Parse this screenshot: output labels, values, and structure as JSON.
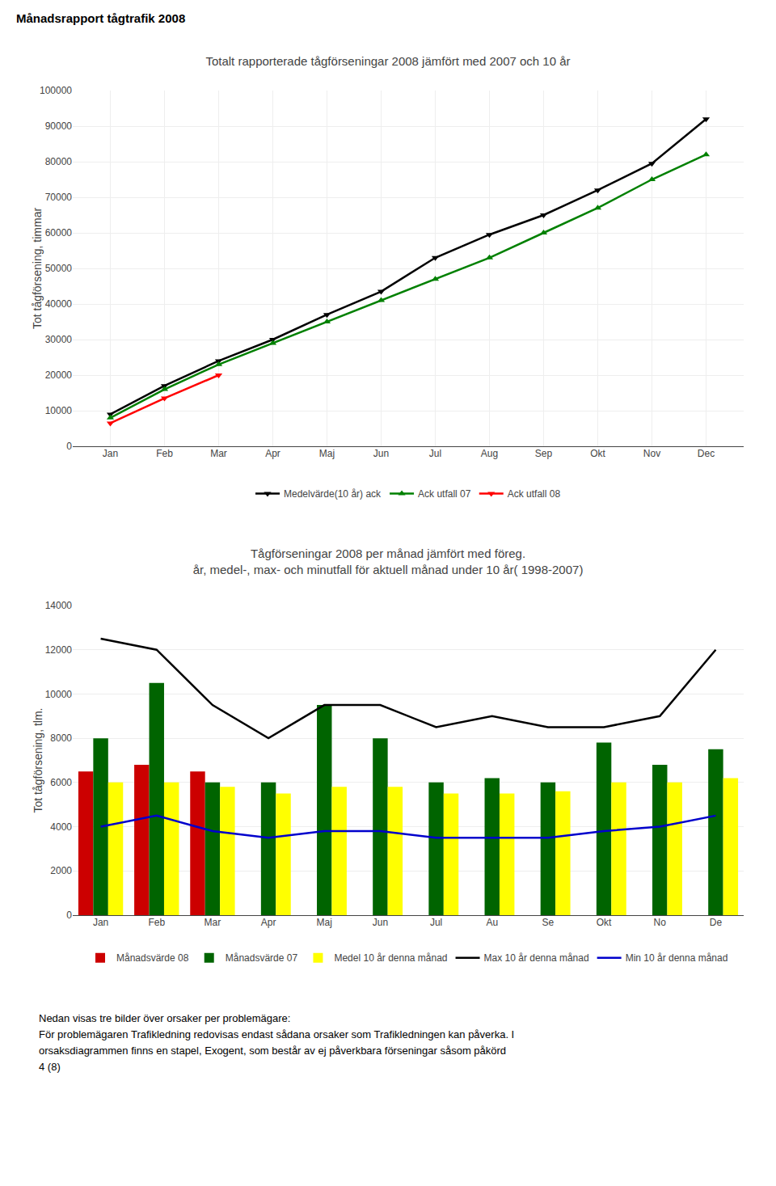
{
  "title": "Månadsrapport tågtrafik 2008",
  "annotations": [
    "Nedan visas tre bilder över orsaker per problemägare:",
    "För problemägaren Trafikledning redovisas endast sådana orsaker som Trafikledningen kan påverka. I",
    "orsaksdiagrammen finns en stapel, Exogent, som består av ej påverkbara förseningar såsom påkörd",
    "4 (8)"
  ],
  "chart_data": [
    {
      "type": "line",
      "title": "Totalt rapporterade tågförseningar 2008 jämfört med 2007 och 10 år",
      "ylabel": "Tot tågförsening, timmar",
      "categories": [
        "Jan",
        "Feb",
        "Mar",
        "Apr",
        "Maj",
        "Jun",
        "Jul",
        "Aug",
        "Sep",
        "Okt",
        "Nov",
        "Dec"
      ],
      "series": [
        {
          "name": "Medelvärde(10 år) ack",
          "color": "#000000",
          "marker": "triangle-down",
          "values": [
            9000,
            17000,
            24000,
            30000,
            37000,
            43500,
            53000,
            59500,
            65000,
            72000,
            79500,
            92000
          ]
        },
        {
          "name": "Ack utfall 07",
          "color": "#008000",
          "marker": "triangle-up",
          "values": [
            8000,
            16000,
            23000,
            29000,
            35000,
            41000,
            47000,
            53000,
            60000,
            67000,
            75000,
            82000
          ]
        },
        {
          "name": "Ack utfall 08",
          "color": "#FF0000",
          "marker": "triangle-down",
          "values": [
            6500,
            13500,
            20000,
            null,
            null,
            null,
            null,
            null,
            null,
            null,
            null,
            null
          ]
        }
      ],
      "ylim": [
        0,
        100000
      ],
      "yticks": [
        0,
        10000,
        20000,
        30000,
        40000,
        50000,
        60000,
        70000,
        80000,
        90000,
        100000
      ],
      "grid": true,
      "legend": "bottom"
    },
    {
      "type": "bar",
      "title": "Tågförseningar 2008 per månad jämfört med föreg.",
      "subtitle": "år, medel-, max- och minutfall för aktuell månad under 10 år( 1998-2007)",
      "ylabel": "Tot tågförsening, tlm.",
      "categories": [
        "Jan",
        "Feb",
        "Mar",
        "Apr",
        "Maj",
        "Jun",
        "Jul",
        "Au",
        "Se",
        "Okt",
        "No",
        "De"
      ],
      "series": [
        {
          "name": "Månadsvärde 08",
          "color": "#CC0000",
          "type": "bar",
          "values": [
            6500,
            6800,
            6500,
            null,
            null,
            null,
            null,
            null,
            null,
            null,
            null,
            null
          ]
        },
        {
          "name": "Månadsvärde 07",
          "color": "#006400",
          "type": "bar",
          "values": [
            8000,
            10500,
            6000,
            6000,
            9500,
            8000,
            6000,
            6200,
            6000,
            7800,
            6800,
            7500
          ]
        },
        {
          "name": "Medel 10 år denna månad",
          "color": "#FFFF00",
          "type": "bar",
          "values": [
            6000,
            6000,
            5800,
            5500,
            5800,
            5800,
            5500,
            5500,
            5600,
            6000,
            6000,
            6200
          ]
        },
        {
          "name": "Max 10 år denna månad",
          "color": "#000000",
          "type": "line",
          "values": [
            12500,
            12000,
            9500,
            8000,
            9500,
            9500,
            8500,
            9000,
            8500,
            8500,
            9000,
            12000
          ]
        },
        {
          "name": "Min 10 år denna månad",
          "color": "#0000CC",
          "type": "line",
          "values": [
            4000,
            4500,
            3800,
            3500,
            3800,
            3800,
            3500,
            3500,
            3500,
            3800,
            4000,
            4500
          ]
        }
      ],
      "ylim": [
        0,
        14000
      ],
      "yticks": [
        0,
        2000,
        4000,
        6000,
        8000,
        10000,
        12000,
        14000
      ],
      "grid": true,
      "legend": "bottom"
    }
  ]
}
